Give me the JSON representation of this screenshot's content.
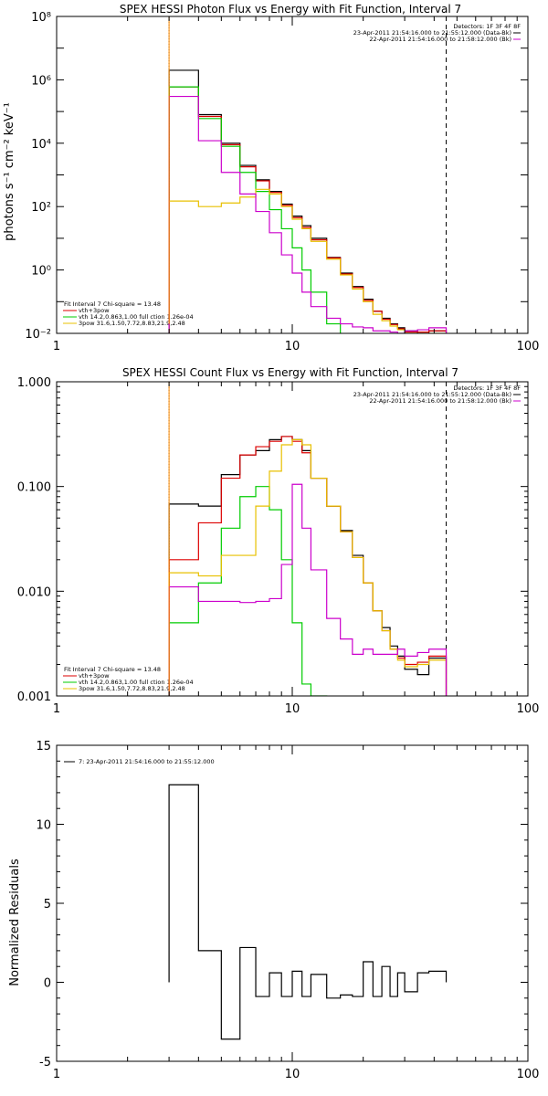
{
  "colors": {
    "black": "#000000",
    "red": "#dd0000",
    "green": "#00cc00",
    "yellow": "#e8c000",
    "magenta": "#cc00cc",
    "orange": "#ff8c00"
  },
  "chart_data": [
    {
      "type": "line",
      "title": "SPEX HESSI Photon Flux vs Energy with Fit Function, Interval 7",
      "ylabel": "photons s⁻¹ cm⁻² keV⁻¹",
      "xscale": "log",
      "yscale": "log",
      "xlim": [
        1,
        100
      ],
      "ylim": [
        0.01,
        100000000
      ],
      "xticks": [
        "1",
        "10",
        "100"
      ],
      "yticks": [
        "10⁻²",
        "10⁰",
        "10²",
        "10⁴",
        "10⁶",
        "10⁸"
      ],
      "vlines": {
        "dotted": 3,
        "dashed": 45
      },
      "legend_top": {
        "header": "Detectors: 1F 3F 4F 8F",
        "lines": [
          "23-Apr-2011 21:54:16.000 to 21:55:12.000 (Data-Bk)",
          "22-Apr-2011 21:54:16.000 to 21:58:12.000 (Bk)"
        ]
      },
      "legend_bottom": {
        "header": "Fit Interval  7    Chi-square = 13.48",
        "lines": [
          "vth+3pow",
          "vth 14.2,0.863,1.00  full ction 1.26e-04",
          "3pow 31.6,1.50,7.72,8.83,21.9,2.48"
        ]
      },
      "bin_edges": [
        3,
        4,
        5,
        6,
        7,
        8,
        9,
        10,
        11,
        12,
        14,
        16,
        18,
        20,
        22,
        24,
        26,
        28,
        30,
        34,
        38,
        45
      ],
      "series": [
        {
          "color": "black",
          "values": [
            2000000,
            80000,
            10000,
            2000,
            700,
            300,
            120,
            50,
            25,
            10,
            2.5,
            0.8,
            0.3,
            0.12,
            0.05,
            0.03,
            0.02,
            0.015,
            0.012,
            0.01,
            0.012
          ]
        },
        {
          "color": "red",
          "values": [
            600000,
            70000,
            9000,
            1800,
            650,
            280,
            110,
            45,
            22,
            9,
            2.4,
            0.75,
            0.28,
            0.11,
            0.05,
            0.028,
            0.019,
            0.014,
            0.011,
            0.011,
            0.012
          ]
        },
        {
          "color": "green",
          "values": [
            600000,
            60000,
            8000,
            1200,
            300,
            80,
            20,
            5,
            1,
            0.2,
            0.02,
            0.001
          ]
        },
        {
          "color": "yellow",
          "values": [
            150,
            100,
            130,
            200,
            350,
            250,
            100,
            40,
            20,
            8,
            2.2,
            0.7,
            0.25,
            0.1,
            0.04,
            0.025,
            0.017,
            0.013,
            0.01,
            0.01,
            0.01
          ]
        },
        {
          "color": "magenta",
          "values": [
            300000,
            12000,
            1200,
            250,
            70,
            15,
            3,
            0.8,
            0.2,
            0.07,
            0.03,
            0.02,
            0.016,
            0.015,
            0.012,
            0.012,
            0.011,
            0.01,
            0.012,
            0.013,
            0.015
          ]
        },
        {
          "color": "orange",
          "values": [
            0.02,
            100000000
          ]
        }
      ]
    },
    {
      "type": "line",
      "title": "SPEX HESSI Count Flux vs Energy with Fit Function, Interval 7",
      "xscale": "log",
      "yscale": "log",
      "xlim": [
        1,
        100
      ],
      "ylim": [
        0.001,
        1.0
      ],
      "xticks": [
        "1",
        "10",
        "100"
      ],
      "yticks": [
        "0.001",
        "0.010",
        "0.100",
        "1.000"
      ],
      "vlines": {
        "dotted": 3,
        "dashed": 45
      },
      "legend_top": {
        "header": "Detectors: 1F 3F 4F 8F",
        "lines": [
          "23-Apr-2011 21:54:16.000 to 21:55:12.000 (Data-Bk)",
          "22-Apr-2011 21:54:16.000 to 21:58:12.000 (Bk)"
        ]
      },
      "legend_bottom": {
        "header": "Fit Interval  7    Chi-square = 13.48",
        "lines": [
          "vth+3pow",
          "vth 14.2,0.863,1.00  full ction 1.26e-04",
          "3pow 31.6,1.50,7.72,8.83,21.9,2.48"
        ]
      },
      "bin_edges": [
        3,
        4,
        5,
        6,
        7,
        8,
        9,
        10,
        11,
        12,
        14,
        16,
        18,
        20,
        22,
        24,
        26,
        28,
        30,
        34,
        38,
        45
      ],
      "series": [
        {
          "color": "black",
          "values": [
            0.068,
            0.065,
            0.13,
            0.2,
            0.22,
            0.28,
            0.3,
            0.28,
            0.22,
            0.12,
            0.065,
            0.038,
            0.022,
            0.012,
            0.0065,
            0.0045,
            0.003,
            0.0024,
            0.0018,
            0.0016,
            0.0023
          ]
        },
        {
          "color": "red",
          "values": [
            0.02,
            0.045,
            0.12,
            0.2,
            0.24,
            0.27,
            0.3,
            0.27,
            0.21,
            0.12,
            0.065,
            0.037,
            0.021,
            0.012,
            0.0065,
            0.0042,
            0.0028,
            0.0023,
            0.002,
            0.0021,
            0.0024
          ]
        },
        {
          "color": "green",
          "values": [
            0.005,
            0.012,
            0.04,
            0.08,
            0.1,
            0.06,
            0.02,
            0.005,
            0.0013,
            0.001
          ]
        },
        {
          "color": "yellow",
          "values": [
            0.015,
            0.014,
            0.022,
            0.022,
            0.065,
            0.14,
            0.25,
            0.28,
            0.25,
            0.12,
            0.065,
            0.037,
            0.021,
            0.012,
            0.0065,
            0.0042,
            0.0028,
            0.0022,
            0.0019,
            0.002,
            0.0022
          ]
        },
        {
          "color": "magenta",
          "values": [
            0.011,
            0.008,
            0.008,
            0.0078,
            0.008,
            0.0085,
            0.018,
            0.105,
            0.04,
            0.016,
            0.0055,
            0.0035,
            0.0025,
            0.0028,
            0.0025,
            0.0025,
            0.0025,
            0.0028,
            0.0024,
            0.0026,
            0.0028
          ]
        },
        {
          "color": "orange",
          "values": [
            0.001,
            1.0
          ]
        }
      ]
    },
    {
      "type": "line",
      "xscale": "log",
      "xlim": [
        1,
        100
      ],
      "ylim": [
        -5,
        15
      ],
      "ylabel": "Normalized Residuals",
      "xticks": [
        "1",
        "10",
        "100"
      ],
      "yticks": [
        "-5",
        "0",
        "5",
        "10",
        "15"
      ],
      "legend": "7: 23-Apr-2011 21:54:16.000 to 21:55:12.000",
      "bin_edges": [
        3,
        4,
        5,
        6,
        7,
        8,
        9,
        10,
        11,
        12,
        14,
        16,
        18,
        20,
        22,
        24,
        26,
        28,
        30,
        34,
        38,
        45
      ],
      "series": [
        {
          "color": "black",
          "values": [
            12.5,
            2.0,
            -3.6,
            2.2,
            -0.9,
            0.6,
            -0.9,
            0.7,
            -0.9,
            0.5,
            -1.0,
            -0.8,
            -0.9,
            1.3,
            -0.9,
            1.0,
            -0.9,
            0.6,
            -0.6,
            0.6,
            0.7
          ]
        }
      ]
    }
  ]
}
